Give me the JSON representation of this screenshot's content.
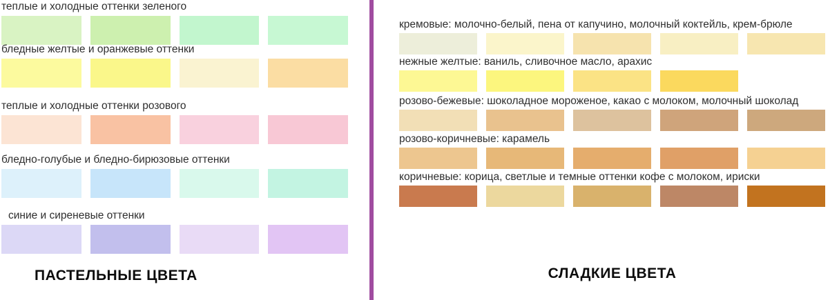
{
  "left_panel": {
    "title": "ПАСТЕЛЬНЫЕ ЦВЕТА",
    "rows": [
      {
        "label": "теплые и холодные оттенки зеленого",
        "colors": [
          "#d9f3c3",
          "#cdf0af",
          "#c2f6ce",
          "#c7f8d3"
        ]
      },
      {
        "label": "бледные желтые и оранжевые оттенки",
        "colors": [
          "#fcfa9e",
          "#faf78a",
          "#faf3d1",
          "#fbdda3"
        ]
      },
      {
        "label": "теплые и холодные оттенки розового",
        "colors": [
          "#fce4d4",
          "#f9c2a3",
          "#f9d1de",
          "#f8c8d5"
        ]
      },
      {
        "label": "бледно-голубые и бледно-бирюзовые оттенки",
        "colors": [
          "#ddf1fb",
          "#c7e5fa",
          "#d9f9ec",
          "#c3f4e2"
        ]
      },
      {
        "label": "синие и сиреневые оттенки",
        "colors": [
          "#dcd8f6",
          "#c2bfed",
          "#e9dbf6",
          "#e2c5f4"
        ]
      }
    ]
  },
  "right_panel": {
    "title": "СЛАДКИЕ ЦВЕТА",
    "rows": [
      {
        "label": "кремовые: молочно-белый, пена от капучино, молочный коктейль, крем-брюле",
        "colors": [
          "#edeeda",
          "#fbf5cb",
          "#f6e3ae",
          "#f8efc3",
          "#f7e6b0"
        ]
      },
      {
        "label": "нежные желтые: ваниль, сливочное масло, арахис",
        "colors": [
          "#fdf894",
          "#fcf67e",
          "#fbe385",
          "#fbd95e"
        ]
      },
      {
        "label": "розово-бежевые: шоколадное мороженое, какао с молоком, молочный шоколад",
        "colors": [
          "#f2dfb6",
          "#e9c28e",
          "#ddc29e",
          "#cfa47b",
          "#cda87d"
        ]
      },
      {
        "label": "розово-коричневые: карамель",
        "colors": [
          "#edc68f",
          "#e7b878",
          "#e5ad6d",
          "#e0a067",
          "#f5d192"
        ]
      },
      {
        "label": "коричневые: корица, светлые и темные оттенки кофе с молоком, ириски",
        "colors": [
          "#c97a4e",
          "#ecd89e",
          "#d9b26c",
          "#bd8766",
          "#c2731f"
        ]
      }
    ]
  },
  "divider_color": "#a04ca0"
}
